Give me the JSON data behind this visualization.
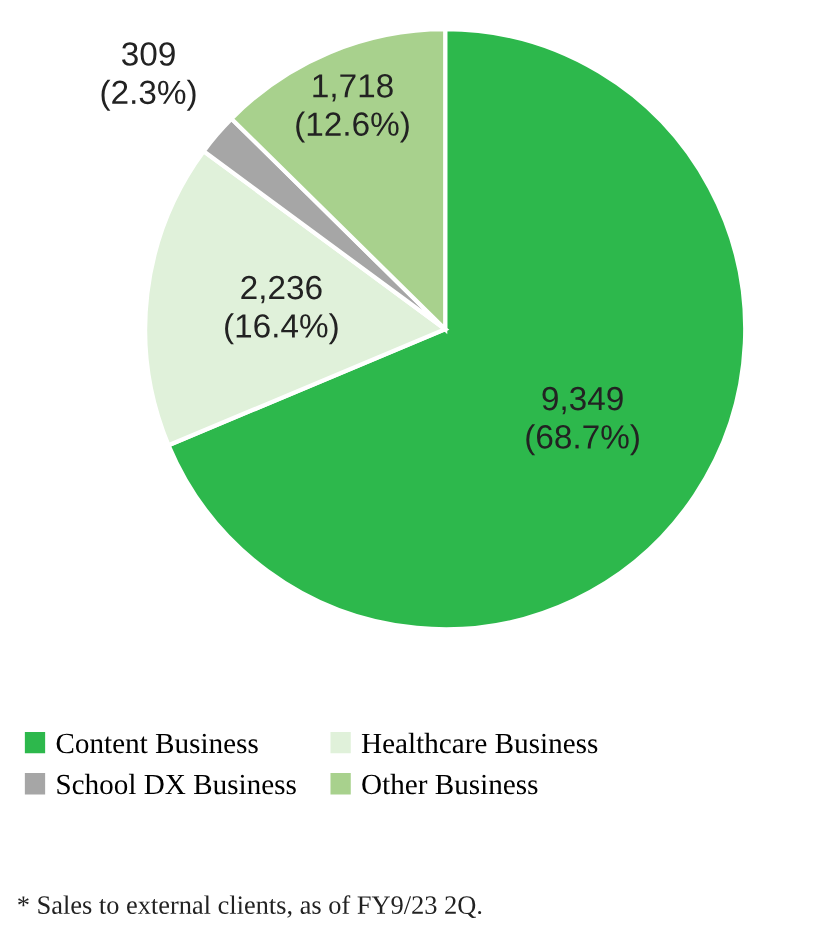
{
  "chart_data": {
    "type": "pie",
    "categories": [
      "Content Business",
      "Healthcare Business",
      "School DX Business",
      "Other Business"
    ],
    "values": [
      9349,
      2236,
      309,
      1718
    ],
    "value_labels": [
      "9,349\n(68.7%)",
      "2,236\n(16.4%)",
      "309\n(2.3%)",
      "1,718\n(12.6%)"
    ],
    "colors": [
      "#2db84c",
      "#e0f1da",
      "#a6a6a6",
      "#a8d18d"
    ],
    "legend": "bottom",
    "annotations": [
      "* Sales to external clients, as of FY9/23 2Q."
    ]
  }
}
